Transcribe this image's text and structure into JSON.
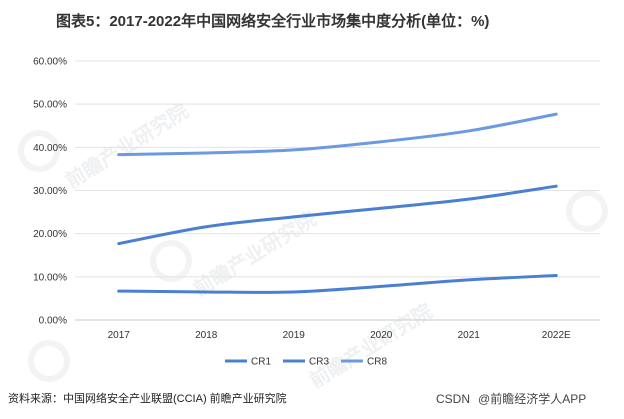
{
  "title": "图表5：2017-2022年中国网络安全行业市场集中度分析(单位：%)",
  "source_text": "资料来源：中国网络安全产业联盟(CCIA) 前瞻产业研究院",
  "credit": {
    "platform": "CSDN",
    "author": "@前瞻经济学人APP"
  },
  "watermark": {
    "brand": "前瞻产业研究院"
  },
  "chart_data": {
    "type": "line",
    "title": "",
    "xlabel": "",
    "ylabel": "",
    "categories": [
      "2017",
      "2018",
      "2019",
      "2020",
      "2021",
      "2022E"
    ],
    "ylim": [
      0,
      60
    ],
    "yticks": [
      "0.00%",
      "10.00%",
      "20.00%",
      "30.00%",
      "40.00%",
      "50.00%",
      "60.00%"
    ],
    "grid": true,
    "legend_position": "bottom",
    "series": [
      {
        "name": "CR1",
        "color": "#4a7fd1",
        "values": [
          6.7,
          6.5,
          6.5,
          7.8,
          9.3,
          10.3
        ]
      },
      {
        "name": "CR3",
        "color": "#4a7fd1",
        "values": [
          17.7,
          21.6,
          23.9,
          25.9,
          28.0,
          31.0
        ]
      },
      {
        "name": "CR8",
        "color": "#6b9ae0",
        "values": [
          38.3,
          38.7,
          39.4,
          41.3,
          43.8,
          47.7
        ]
      }
    ]
  }
}
